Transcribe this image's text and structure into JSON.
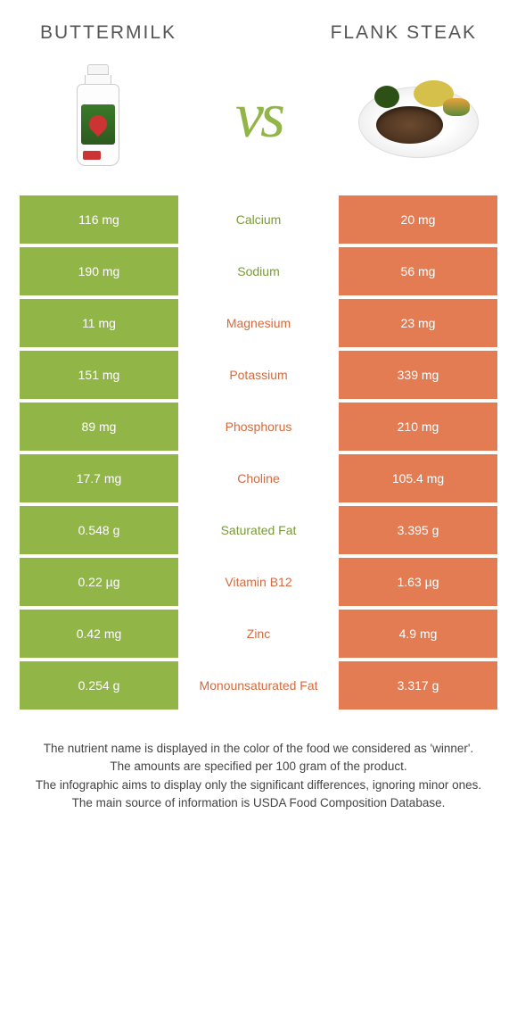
{
  "header": {
    "left": "Buttermilk",
    "right": "Flank steak"
  },
  "vs": "vs",
  "colors": {
    "left": "#92b548",
    "right": "#e37c52",
    "left_text": "#7a9a3a",
    "right_text": "#d46a3f"
  },
  "rows": [
    {
      "left": "116 mg",
      "label": "Calcium",
      "right": "20 mg",
      "winner": "left"
    },
    {
      "left": "190 mg",
      "label": "Sodium",
      "right": "56 mg",
      "winner": "left"
    },
    {
      "left": "11 mg",
      "label": "Magnesium",
      "right": "23 mg",
      "winner": "right"
    },
    {
      "left": "151 mg",
      "label": "Potassium",
      "right": "339 mg",
      "winner": "right"
    },
    {
      "left": "89 mg",
      "label": "Phosphorus",
      "right": "210 mg",
      "winner": "right"
    },
    {
      "left": "17.7 mg",
      "label": "Choline",
      "right": "105.4 mg",
      "winner": "right"
    },
    {
      "left": "0.548 g",
      "label": "Saturated Fat",
      "right": "3.395 g",
      "winner": "left"
    },
    {
      "left": "0.22 µg",
      "label": "Vitamin B12",
      "right": "1.63 µg",
      "winner": "right"
    },
    {
      "left": "0.42 mg",
      "label": "Zinc",
      "right": "4.9 mg",
      "winner": "right"
    },
    {
      "left": "0.254 g",
      "label": "Monounsaturated Fat",
      "right": "3.317 g",
      "winner": "right"
    }
  ],
  "footer": {
    "l1": "The nutrient name is displayed in the color of the food we considered as 'winner'.",
    "l2": "The amounts are specified per 100 gram of the product.",
    "l3": "The infographic aims to display only the significant differences, ignoring minor ones.",
    "l4": "The main source of information is USDA Food Composition Database."
  }
}
